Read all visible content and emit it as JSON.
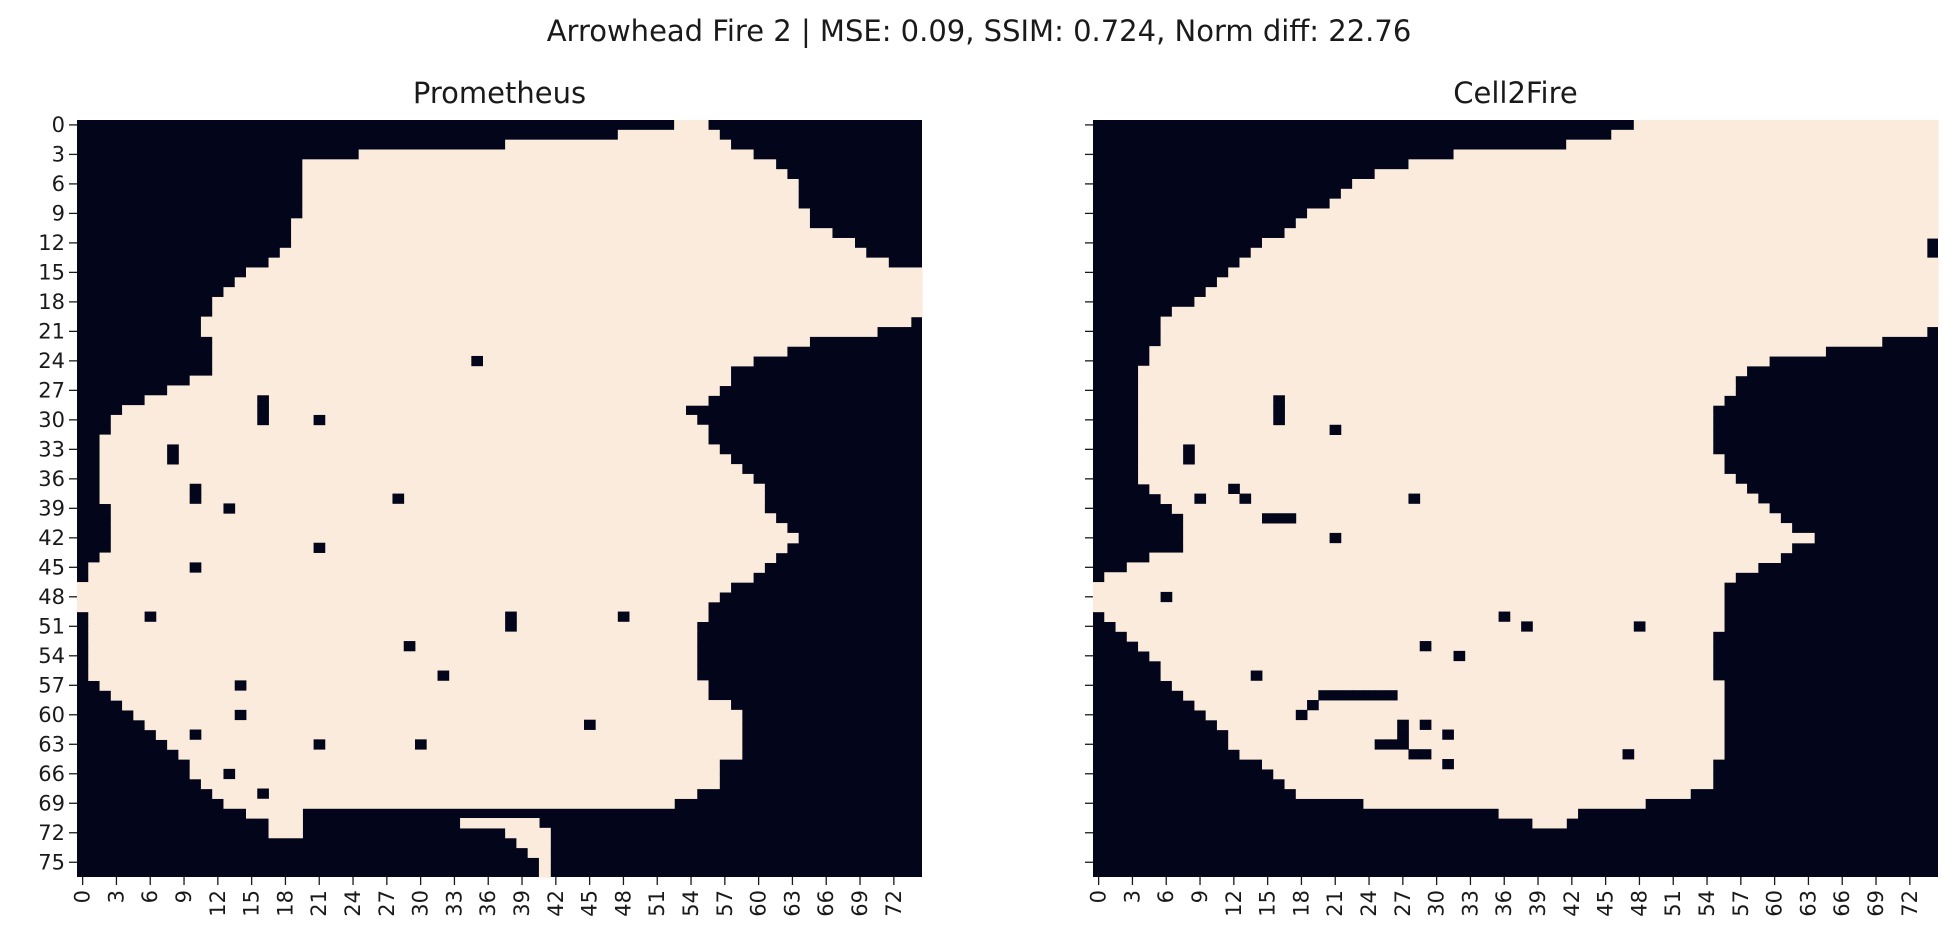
{
  "figure": {
    "suptitle": "Arrowhead Fire 2 | MSE: 0.09, SSIM: 0.724, Norm diff: 22.76"
  },
  "colors": {
    "burned": "#faebdd",
    "unburned": "#03051a",
    "text": "#1a1a1a"
  },
  "chart_data": [
    {
      "type": "heatmap",
      "title": "Prometheus",
      "rows": 77,
      "cols": 75,
      "xticks": [
        0,
        3,
        6,
        9,
        12,
        15,
        18,
        21,
        24,
        27,
        30,
        33,
        36,
        39,
        42,
        45,
        48,
        51,
        54,
        57,
        60,
        63,
        66,
        69,
        72
      ],
      "yticks": [
        0,
        3,
        6,
        9,
        12,
        15,
        18,
        21,
        24,
        27,
        30,
        33,
        36,
        39,
        42,
        45,
        48,
        51,
        54,
        57,
        60,
        63,
        66,
        69,
        72,
        75
      ],
      "values": "binary 0/1 grid (1 = burned); burned region boundaries per row listed below",
      "burned_row_ranges": [
        [
          [
            53,
            55
          ]
        ],
        [
          [
            48,
            56
          ]
        ],
        [
          [
            38,
            57
          ]
        ],
        [
          [
            25,
            59
          ]
        ],
        [
          [
            20,
            61
          ]
        ],
        [
          [
            20,
            62
          ]
        ],
        [
          [
            20,
            63
          ]
        ],
        [
          [
            20,
            63
          ]
        ],
        [
          [
            20,
            63
          ]
        ],
        [
          [
            20,
            64
          ]
        ],
        [
          [
            19,
            64
          ]
        ],
        [
          [
            19,
            66
          ]
        ],
        [
          [
            19,
            68
          ]
        ],
        [
          [
            18,
            69
          ]
        ],
        [
          [
            17,
            71
          ]
        ],
        [
          [
            15,
            74
          ]
        ],
        [
          [
            14,
            74
          ]
        ],
        [
          [
            13,
            74
          ]
        ],
        [
          [
            12,
            74
          ]
        ],
        [
          [
            12,
            74
          ]
        ],
        [
          [
            11,
            73
          ]
        ],
        [
          [
            11,
            70
          ]
        ],
        [
          [
            12,
            64
          ]
        ],
        [
          [
            12,
            62
          ]
        ],
        [
          [
            12,
            59
          ]
        ],
        [
          [
            12,
            57
          ]
        ],
        [
          [
            10,
            57
          ]
        ],
        [
          [
            8,
            56
          ]
        ],
        [
          [
            6,
            55
          ]
        ],
        [
          [
            4,
            53
          ]
        ],
        [
          [
            3,
            54
          ]
        ],
        [
          [
            3,
            55
          ]
        ],
        [
          [
            2,
            55
          ]
        ],
        [
          [
            2,
            56
          ]
        ],
        [
          [
            2,
            57
          ]
        ],
        [
          [
            2,
            58
          ]
        ],
        [
          [
            2,
            59
          ]
        ],
        [
          [
            2,
            60
          ]
        ],
        [
          [
            2,
            60
          ]
        ],
        [
          [
            3,
            60
          ]
        ],
        [
          [
            3,
            61
          ]
        ],
        [
          [
            3,
            62
          ]
        ],
        [
          [
            3,
            63
          ]
        ],
        [
          [
            3,
            62
          ]
        ],
        [
          [
            2,
            61
          ]
        ],
        [
          [
            1,
            60
          ]
        ],
        [
          [
            1,
            59
          ]
        ],
        [
          [
            0,
            57
          ]
        ],
        [
          [
            0,
            56
          ]
        ],
        [
          [
            0,
            55
          ]
        ],
        [
          [
            1,
            55
          ]
        ],
        [
          [
            1,
            54
          ]
        ],
        [
          [
            1,
            54
          ]
        ],
        [
          [
            1,
            54
          ]
        ],
        [
          [
            1,
            54
          ]
        ],
        [
          [
            1,
            54
          ]
        ],
        [
          [
            1,
            54
          ]
        ],
        [
          [
            2,
            55
          ]
        ],
        [
          [
            3,
            55
          ]
        ],
        [
          [
            4,
            57
          ]
        ],
        [
          [
            5,
            58
          ]
        ],
        [
          [
            6,
            58
          ]
        ],
        [
          [
            7,
            58
          ]
        ],
        [
          [
            8,
            58
          ]
        ],
        [
          [
            9,
            58
          ]
        ],
        [
          [
            10,
            56
          ]
        ],
        [
          [
            10,
            56
          ]
        ],
        [
          [
            11,
            56
          ]
        ],
        [
          [
            12,
            54
          ]
        ],
        [
          [
            13,
            52
          ]
        ],
        [
          [
            15,
            19
          ]
        ],
        [
          [
            17,
            19
          ],
          [
            34,
            40
          ]
        ],
        [
          [
            17,
            19
          ],
          [
            38,
            41
          ]
        ],
        [
          [
            39,
            41
          ]
        ],
        [
          [
            40,
            41
          ]
        ],
        [
          [
            41,
            41
          ]
        ],
        [
          [
            41,
            41
          ]
        ]
      ],
      "holes": [
        [
          24,
          35
        ],
        [
          28,
          16
        ],
        [
          29,
          16
        ],
        [
          30,
          16
        ],
        [
          30,
          21
        ],
        [
          33,
          8
        ],
        [
          34,
          8
        ],
        [
          37,
          10
        ],
        [
          38,
          28
        ],
        [
          38,
          10
        ],
        [
          39,
          13
        ],
        [
          43,
          21
        ],
        [
          45,
          10
        ],
        [
          50,
          6
        ],
        [
          50,
          38
        ],
        [
          50,
          48
        ],
        [
          51,
          38
        ],
        [
          53,
          29
        ],
        [
          56,
          32
        ],
        [
          57,
          14
        ],
        [
          60,
          14
        ],
        [
          61,
          45
        ],
        [
          62,
          10
        ],
        [
          63,
          21
        ],
        [
          63,
          30
        ],
        [
          66,
          13
        ],
        [
          68,
          16
        ]
      ]
    },
    {
      "type": "heatmap",
      "title": "Cell2Fire",
      "rows": 77,
      "cols": 75,
      "xticks": [
        0,
        3,
        6,
        9,
        12,
        15,
        18,
        21,
        24,
        27,
        30,
        33,
        36,
        39,
        42,
        45,
        48,
        51,
        54,
        57,
        60,
        63,
        66,
        69,
        72
      ],
      "yticks": [],
      "values": "binary 0/1 grid (1 = burned); burned region boundaries per row listed below",
      "burned_row_ranges": [
        [
          [
            48,
            74
          ]
        ],
        [
          [
            46,
            74
          ]
        ],
        [
          [
            42,
            74
          ]
        ],
        [
          [
            32,
            74
          ]
        ],
        [
          [
            28,
            74
          ]
        ],
        [
          [
            25,
            74
          ]
        ],
        [
          [
            23,
            74
          ]
        ],
        [
          [
            22,
            74
          ]
        ],
        [
          [
            21,
            74
          ]
        ],
        [
          [
            19,
            74
          ]
        ],
        [
          [
            18,
            74
          ]
        ],
        [
          [
            17,
            74
          ]
        ],
        [
          [
            15,
            73
          ]
        ],
        [
          [
            14,
            73
          ]
        ],
        [
          [
            13,
            74
          ]
        ],
        [
          [
            12,
            74
          ]
        ],
        [
          [
            11,
            74
          ]
        ],
        [
          [
            10,
            74
          ]
        ],
        [
          [
            9,
            74
          ]
        ],
        [
          [
            7,
            74
          ]
        ],
        [
          [
            6,
            74
          ]
        ],
        [
          [
            6,
            73
          ]
        ],
        [
          [
            6,
            69
          ]
        ],
        [
          [
            5,
            64
          ]
        ],
        [
          [
            5,
            59
          ]
        ],
        [
          [
            4,
            57
          ]
        ],
        [
          [
            4,
            56
          ]
        ],
        [
          [
            4,
            56
          ]
        ],
        [
          [
            4,
            55
          ]
        ],
        [
          [
            4,
            54
          ]
        ],
        [
          [
            4,
            54
          ]
        ],
        [
          [
            4,
            54
          ]
        ],
        [
          [
            4,
            54
          ]
        ],
        [
          [
            4,
            54
          ]
        ],
        [
          [
            4,
            55
          ]
        ],
        [
          [
            4,
            55
          ]
        ],
        [
          [
            4,
            56
          ]
        ],
        [
          [
            5,
            57
          ]
        ],
        [
          [
            6,
            58
          ]
        ],
        [
          [
            7,
            59
          ]
        ],
        [
          [
            8,
            60
          ]
        ],
        [
          [
            8,
            61
          ]
        ],
        [
          [
            8,
            63
          ]
        ],
        [
          [
            8,
            61
          ]
        ],
        [
          [
            5,
            60
          ]
        ],
        [
          [
            3,
            58
          ]
        ],
        [
          [
            1,
            56
          ]
        ],
        [
          [
            0,
            55
          ]
        ],
        [
          [
            0,
            55
          ]
        ],
        [
          [
            0,
            55
          ]
        ],
        [
          [
            1,
            55
          ]
        ],
        [
          [
            2,
            55
          ]
        ],
        [
          [
            3,
            54
          ]
        ],
        [
          [
            4,
            54
          ]
        ],
        [
          [
            5,
            54
          ]
        ],
        [
          [
            6,
            54
          ]
        ],
        [
          [
            6,
            54
          ]
        ],
        [
          [
            7,
            55
          ]
        ],
        [
          [
            8,
            55
          ]
        ],
        [
          [
            9,
            55
          ]
        ],
        [
          [
            10,
            55
          ]
        ],
        [
          [
            11,
            55
          ]
        ],
        [
          [
            12,
            55
          ]
        ],
        [
          [
            12,
            55
          ]
        ],
        [
          [
            13,
            55
          ]
        ],
        [
          [
            15,
            54
          ]
        ],
        [
          [
            16,
            54
          ]
        ],
        [
          [
            17,
            54
          ]
        ],
        [
          [
            18,
            52
          ]
        ],
        [
          [
            24,
            48
          ]
        ],
        [
          [
            36,
            42
          ]
        ],
        [
          [
            39,
            41
          ]
        ],
        [],
        [],
        [],
        [],
        []
      ],
      "holes": [
        [
          28,
          16
        ],
        [
          29,
          16
        ],
        [
          30,
          16
        ],
        [
          31,
          21
        ],
        [
          33,
          8
        ],
        [
          34,
          8
        ],
        [
          37,
          12
        ],
        [
          38,
          9
        ],
        [
          38,
          13
        ],
        [
          38,
          28
        ],
        [
          40,
          15
        ],
        [
          40,
          16
        ],
        [
          40,
          17
        ],
        [
          42,
          21
        ],
        [
          48,
          6
        ],
        [
          50,
          36
        ],
        [
          51,
          38
        ],
        [
          51,
          48
        ],
        [
          53,
          29
        ],
        [
          54,
          32
        ],
        [
          56,
          14
        ],
        [
          58,
          20
        ],
        [
          58,
          21
        ],
        [
          58,
          22
        ],
        [
          58,
          23
        ],
        [
          58,
          24
        ],
        [
          58,
          25
        ],
        [
          58,
          26
        ],
        [
          59,
          19
        ],
        [
          60,
          18
        ],
        [
          61,
          27
        ],
        [
          61,
          29
        ],
        [
          62,
          27
        ],
        [
          62,
          31
        ],
        [
          63,
          25
        ],
        [
          63,
          26
        ],
        [
          63,
          27
        ],
        [
          64,
          28
        ],
        [
          64,
          29
        ],
        [
          65,
          31
        ],
        [
          64,
          47
        ]
      ]
    }
  ]
}
